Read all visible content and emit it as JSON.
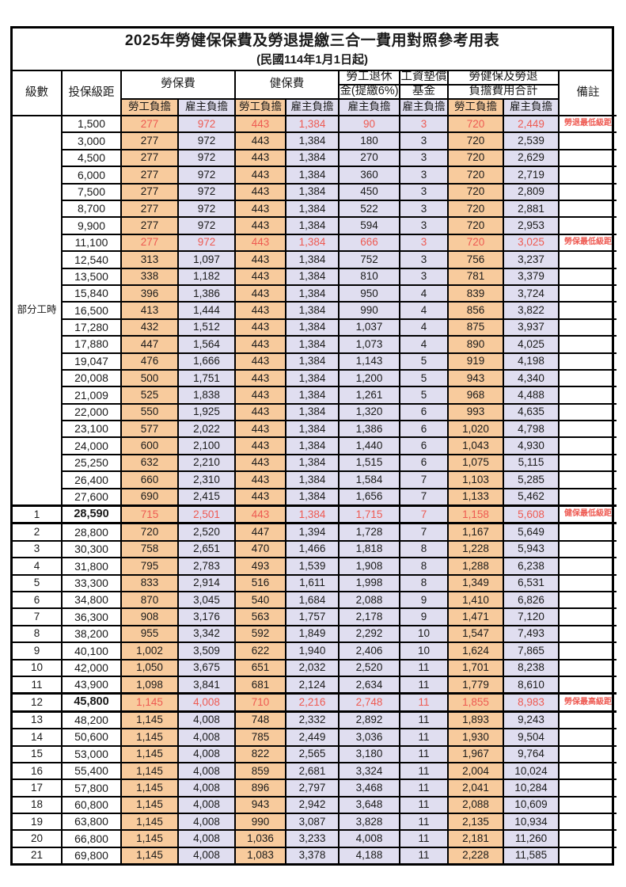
{
  "title": "2025年勞健保保費及勞退提繳三合一費用對照參考用表",
  "subtitle": "(民國114年1月1日起)",
  "colors": {
    "employee_column_bg": "#F8CB9D",
    "employer_column_bg": "#E0DEF0",
    "highlight_text": "#EE5A52",
    "border": "#000000"
  },
  "header": {
    "level": "級數",
    "bracket": "投保級距",
    "labor": "勞保費",
    "health": "健保費",
    "pension_l1": "勞工退休",
    "pension_l2": "金(提繳6%)",
    "fund_l1": "工資墊償",
    "fund_l2": "基金",
    "total_l1": "勞健保及勞退",
    "total_l2": "負擔費用合計",
    "remark": "備註",
    "employee": "勞工負擔",
    "employer": "雇主負擔"
  },
  "part_time": {
    "label": "部分工時",
    "rowspan": 23
  },
  "rows": [
    {
      "c": [
        "",
        "1,500",
        "277",
        "972",
        "443",
        "1,384",
        "90",
        "3",
        "720",
        "2,449"
      ],
      "remark": "勞退最低級距",
      "red": true
    },
    {
      "c": [
        "",
        "3,000",
        "277",
        "972",
        "443",
        "1,384",
        "180",
        "3",
        "720",
        "2,539"
      ]
    },
    {
      "c": [
        "",
        "4,500",
        "277",
        "972",
        "443",
        "1,384",
        "270",
        "3",
        "720",
        "2,629"
      ]
    },
    {
      "c": [
        "",
        "6,000",
        "277",
        "972",
        "443",
        "1,384",
        "360",
        "3",
        "720",
        "2,719"
      ]
    },
    {
      "c": [
        "",
        "7,500",
        "277",
        "972",
        "443",
        "1,384",
        "450",
        "3",
        "720",
        "2,809"
      ]
    },
    {
      "c": [
        "",
        "8,700",
        "277",
        "972",
        "443",
        "1,384",
        "522",
        "3",
        "720",
        "2,881"
      ]
    },
    {
      "c": [
        "",
        "9,900",
        "277",
        "972",
        "443",
        "1,384",
        "594",
        "3",
        "720",
        "2,953"
      ]
    },
    {
      "c": [
        "",
        "11,100",
        "277",
        "972",
        "443",
        "1,384",
        "666",
        "3",
        "720",
        "3,025"
      ],
      "remark": "勞保最低級距",
      "red": true
    },
    {
      "c": [
        "",
        "12,540",
        "313",
        "1,097",
        "443",
        "1,384",
        "752",
        "3",
        "756",
        "3,237"
      ]
    },
    {
      "c": [
        "",
        "13,500",
        "338",
        "1,182",
        "443",
        "1,384",
        "810",
        "3",
        "781",
        "3,379"
      ]
    },
    {
      "c": [
        "",
        "15,840",
        "396",
        "1,386",
        "443",
        "1,384",
        "950",
        "4",
        "839",
        "3,724"
      ]
    },
    {
      "c": [
        "",
        "16,500",
        "413",
        "1,444",
        "443",
        "1,384",
        "990",
        "4",
        "856",
        "3,822"
      ]
    },
    {
      "c": [
        "",
        "17,280",
        "432",
        "1,512",
        "443",
        "1,384",
        "1,037",
        "4",
        "875",
        "3,937"
      ]
    },
    {
      "c": [
        "",
        "17,880",
        "447",
        "1,564",
        "443",
        "1,384",
        "1,073",
        "4",
        "890",
        "4,025"
      ]
    },
    {
      "c": [
        "",
        "19,047",
        "476",
        "1,666",
        "443",
        "1,384",
        "1,143",
        "5",
        "919",
        "4,198"
      ]
    },
    {
      "c": [
        "",
        "20,008",
        "500",
        "1,751",
        "443",
        "1,384",
        "1,200",
        "5",
        "943",
        "4,340"
      ]
    },
    {
      "c": [
        "",
        "21,009",
        "525",
        "1,838",
        "443",
        "1,384",
        "1,261",
        "5",
        "968",
        "4,488"
      ]
    },
    {
      "c": [
        "",
        "22,000",
        "550",
        "1,925",
        "443",
        "1,384",
        "1,320",
        "6",
        "993",
        "4,635"
      ]
    },
    {
      "c": [
        "",
        "23,100",
        "577",
        "2,022",
        "443",
        "1,384",
        "1,386",
        "6",
        "1,020",
        "4,798"
      ]
    },
    {
      "c": [
        "",
        "24,000",
        "600",
        "2,100",
        "443",
        "1,384",
        "1,440",
        "6",
        "1,043",
        "4,930"
      ]
    },
    {
      "c": [
        "",
        "25,250",
        "632",
        "2,210",
        "443",
        "1,384",
        "1,515",
        "6",
        "1,075",
        "5,115"
      ]
    },
    {
      "c": [
        "",
        "26,400",
        "660",
        "2,310",
        "443",
        "1,384",
        "1,584",
        "7",
        "1,103",
        "5,285"
      ]
    },
    {
      "c": [
        "",
        "27,600",
        "690",
        "2,415",
        "443",
        "1,384",
        "1,656",
        "7",
        "1,133",
        "5,462"
      ]
    },
    {
      "c": [
        "1",
        "28,590",
        "715",
        "2,501",
        "443",
        "1,384",
        "1,715",
        "7",
        "1,158",
        "5,608"
      ],
      "remark": "健保最低級距",
      "red": true,
      "thick": true,
      "bold": true
    },
    {
      "c": [
        "2",
        "28,800",
        "720",
        "2,520",
        "447",
        "1,394",
        "1,728",
        "7",
        "1,167",
        "5,649"
      ]
    },
    {
      "c": [
        "3",
        "30,300",
        "758",
        "2,651",
        "470",
        "1,466",
        "1,818",
        "8",
        "1,228",
        "5,943"
      ]
    },
    {
      "c": [
        "4",
        "31,800",
        "795",
        "2,783",
        "493",
        "1,539",
        "1,908",
        "8",
        "1,288",
        "6,238"
      ]
    },
    {
      "c": [
        "5",
        "33,300",
        "833",
        "2,914",
        "516",
        "1,611",
        "1,998",
        "8",
        "1,349",
        "6,531"
      ]
    },
    {
      "c": [
        "6",
        "34,800",
        "870",
        "3,045",
        "540",
        "1,684",
        "2,088",
        "9",
        "1,410",
        "6,826"
      ]
    },
    {
      "c": [
        "7",
        "36,300",
        "908",
        "3,176",
        "563",
        "1,757",
        "2,178",
        "9",
        "1,471",
        "7,120"
      ]
    },
    {
      "c": [
        "8",
        "38,200",
        "955",
        "3,342",
        "592",
        "1,849",
        "2,292",
        "10",
        "1,547",
        "7,493"
      ]
    },
    {
      "c": [
        "9",
        "40,100",
        "1,002",
        "3,509",
        "622",
        "1,940",
        "2,406",
        "10",
        "1,624",
        "7,865"
      ]
    },
    {
      "c": [
        "10",
        "42,000",
        "1,050",
        "3,675",
        "651",
        "2,032",
        "2,520",
        "11",
        "1,701",
        "8,238"
      ]
    },
    {
      "c": [
        "11",
        "43,900",
        "1,098",
        "3,841",
        "681",
        "2,124",
        "2,634",
        "11",
        "1,779",
        "8,610"
      ]
    },
    {
      "c": [
        "12",
        "45,800",
        "1,145",
        "4,008",
        "710",
        "2,216",
        "2,748",
        "11",
        "1,855",
        "8,983"
      ],
      "remark": "勞保最高級距",
      "red": true,
      "thick": true,
      "bold": true
    },
    {
      "c": [
        "13",
        "48,200",
        "1,145",
        "4,008",
        "748",
        "2,332",
        "2,892",
        "11",
        "1,893",
        "9,243"
      ]
    },
    {
      "c": [
        "14",
        "50,600",
        "1,145",
        "4,008",
        "785",
        "2,449",
        "3,036",
        "11",
        "1,930",
        "9,504"
      ]
    },
    {
      "c": [
        "15",
        "53,000",
        "1,145",
        "4,008",
        "822",
        "2,565",
        "3,180",
        "11",
        "1,967",
        "9,764"
      ]
    },
    {
      "c": [
        "16",
        "55,400",
        "1,145",
        "4,008",
        "859",
        "2,681",
        "3,324",
        "11",
        "2,004",
        "10,024"
      ]
    },
    {
      "c": [
        "17",
        "57,800",
        "1,145",
        "4,008",
        "896",
        "2,797",
        "3,468",
        "11",
        "2,041",
        "10,284"
      ]
    },
    {
      "c": [
        "18",
        "60,800",
        "1,145",
        "4,008",
        "943",
        "2,942",
        "3,648",
        "11",
        "2,088",
        "10,609"
      ]
    },
    {
      "c": [
        "19",
        "63,800",
        "1,145",
        "4,008",
        "990",
        "3,087",
        "3,828",
        "11",
        "2,135",
        "10,934"
      ]
    },
    {
      "c": [
        "20",
        "66,800",
        "1,145",
        "4,008",
        "1,036",
        "3,233",
        "4,008",
        "11",
        "2,181",
        "11,260"
      ]
    },
    {
      "c": [
        "21",
        "69,800",
        "1,145",
        "4,008",
        "1,083",
        "3,378",
        "4,188",
        "11",
        "2,228",
        "11,585"
      ]
    }
  ]
}
